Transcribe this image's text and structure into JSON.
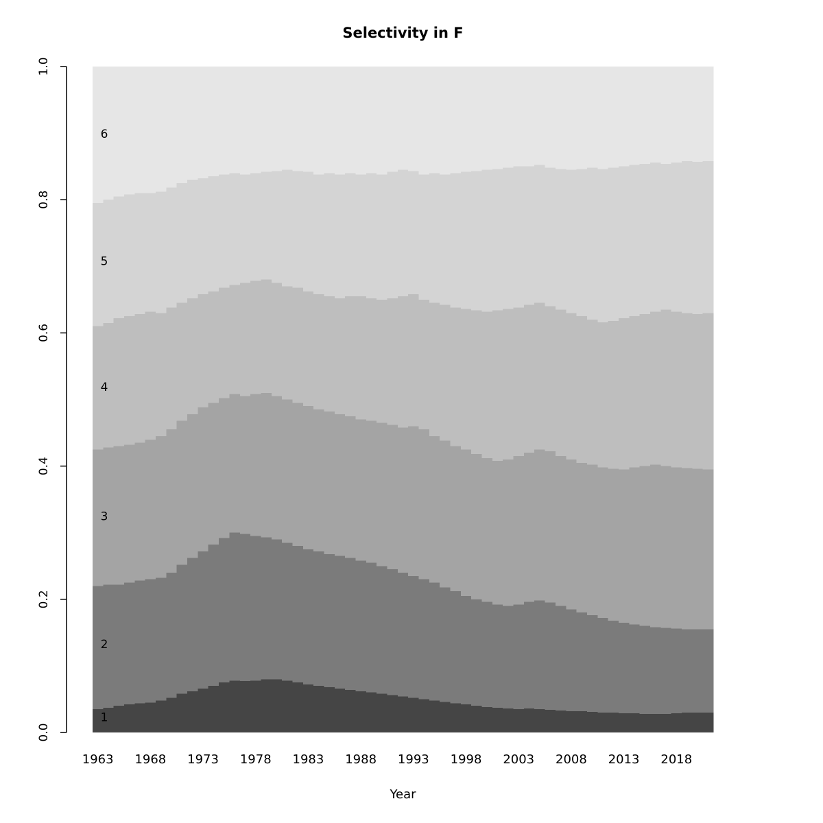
{
  "page": {
    "title": "Selectivity in F"
  },
  "chart_data": {
    "type": "area",
    "stacked": true,
    "normalized": true,
    "title": "Selectivity in F",
    "xlabel": "Year",
    "ylabel": "",
    "ylim": [
      0,
      1
    ],
    "grid": false,
    "legend_position": "none",
    "colors": [
      "#454545",
      "#7b7b7b",
      "#a4a4a4",
      "#bebebe",
      "#d4d4d4",
      "#e6e6e6"
    ],
    "x": [
      1963,
      1964,
      1965,
      1966,
      1967,
      1968,
      1969,
      1970,
      1971,
      1972,
      1973,
      1974,
      1975,
      1976,
      1977,
      1978,
      1979,
      1980,
      1981,
      1982,
      1983,
      1984,
      1985,
      1986,
      1987,
      1988,
      1989,
      1990,
      1991,
      1992,
      1993,
      1994,
      1995,
      1996,
      1997,
      1998,
      1999,
      2000,
      2001,
      2002,
      2003,
      2004,
      2005,
      2006,
      2007,
      2008,
      2009,
      2010,
      2011,
      2012,
      2013,
      2014,
      2015,
      2016,
      2017,
      2018,
      2019,
      2020,
      2021
    ],
    "x_ticks": [
      1963,
      1968,
      1973,
      1978,
      1983,
      1988,
      1993,
      1998,
      2003,
      2008,
      2013,
      2018
    ],
    "y_ticks": [
      0.0,
      0.2,
      0.4,
      0.6,
      0.8,
      1.0
    ],
    "y_tick_labels": [
      "0.0",
      "0.2",
      "0.4",
      "0.6",
      "0.8",
      "1.0"
    ],
    "band_labels": [
      {
        "text": "1",
        "y": 0.022
      },
      {
        "text": "2",
        "y": 0.132
      },
      {
        "text": "3",
        "y": 0.324
      },
      {
        "text": "4",
        "y": 0.518
      },
      {
        "text": "5",
        "y": 0.707
      },
      {
        "text": "6",
        "y": 0.898
      }
    ],
    "series": [
      {
        "name": "1",
        "values": [
          0.035,
          0.037,
          0.04,
          0.042,
          0.044,
          0.045,
          0.048,
          0.052,
          0.058,
          0.062,
          0.066,
          0.07,
          0.075,
          0.078,
          0.077,
          0.078,
          0.08,
          0.08,
          0.078,
          0.075,
          0.072,
          0.07,
          0.068,
          0.066,
          0.064,
          0.062,
          0.06,
          0.058,
          0.056,
          0.054,
          0.052,
          0.05,
          0.048,
          0.046,
          0.044,
          0.042,
          0.04,
          0.038,
          0.037,
          0.036,
          0.035,
          0.036,
          0.035,
          0.034,
          0.033,
          0.032,
          0.032,
          0.031,
          0.03,
          0.03,
          0.029,
          0.029,
          0.028,
          0.028,
          0.028,
          0.029,
          0.03,
          0.03,
          0.03
        ]
      },
      {
        "name": "2",
        "values": [
          0.185,
          0.185,
          0.182,
          0.183,
          0.184,
          0.185,
          0.184,
          0.188,
          0.194,
          0.2,
          0.206,
          0.212,
          0.217,
          0.222,
          0.221,
          0.217,
          0.213,
          0.21,
          0.207,
          0.205,
          0.203,
          0.202,
          0.2,
          0.199,
          0.198,
          0.196,
          0.195,
          0.192,
          0.189,
          0.186,
          0.183,
          0.18,
          0.177,
          0.172,
          0.168,
          0.163,
          0.16,
          0.158,
          0.155,
          0.154,
          0.157,
          0.16,
          0.163,
          0.161,
          0.157,
          0.153,
          0.148,
          0.145,
          0.142,
          0.138,
          0.136,
          0.133,
          0.132,
          0.13,
          0.129,
          0.127,
          0.125,
          0.125,
          0.125
        ]
      },
      {
        "name": "3",
        "values": [
          0.205,
          0.206,
          0.208,
          0.207,
          0.207,
          0.21,
          0.213,
          0.215,
          0.216,
          0.216,
          0.216,
          0.213,
          0.21,
          0.208,
          0.207,
          0.213,
          0.217,
          0.215,
          0.215,
          0.215,
          0.215,
          0.213,
          0.214,
          0.213,
          0.213,
          0.212,
          0.213,
          0.215,
          0.217,
          0.218,
          0.225,
          0.225,
          0.22,
          0.22,
          0.218,
          0.22,
          0.218,
          0.216,
          0.216,
          0.22,
          0.223,
          0.224,
          0.227,
          0.227,
          0.225,
          0.225,
          0.225,
          0.226,
          0.226,
          0.228,
          0.23,
          0.236,
          0.24,
          0.244,
          0.243,
          0.242,
          0.242,
          0.241,
          0.24
        ]
      },
      {
        "name": "4",
        "values": [
          0.185,
          0.187,
          0.192,
          0.193,
          0.193,
          0.192,
          0.185,
          0.183,
          0.177,
          0.174,
          0.17,
          0.167,
          0.166,
          0.164,
          0.17,
          0.17,
          0.17,
          0.17,
          0.17,
          0.173,
          0.172,
          0.173,
          0.173,
          0.174,
          0.18,
          0.185,
          0.184,
          0.185,
          0.19,
          0.197,
          0.198,
          0.195,
          0.2,
          0.204,
          0.208,
          0.211,
          0.216,
          0.22,
          0.226,
          0.226,
          0.223,
          0.222,
          0.22,
          0.218,
          0.22,
          0.22,
          0.22,
          0.218,
          0.218,
          0.222,
          0.227,
          0.227,
          0.228,
          0.23,
          0.235,
          0.234,
          0.233,
          0.232,
          0.235
        ]
      },
      {
        "name": "5",
        "values": [
          0.185,
          0.185,
          0.183,
          0.183,
          0.182,
          0.178,
          0.182,
          0.18,
          0.18,
          0.178,
          0.174,
          0.173,
          0.17,
          0.168,
          0.163,
          0.162,
          0.162,
          0.168,
          0.175,
          0.175,
          0.18,
          0.18,
          0.185,
          0.186,
          0.185,
          0.183,
          0.188,
          0.188,
          0.19,
          0.19,
          0.185,
          0.188,
          0.195,
          0.196,
          0.202,
          0.206,
          0.209,
          0.213,
          0.212,
          0.212,
          0.212,
          0.208,
          0.207,
          0.208,
          0.211,
          0.215,
          0.221,
          0.228,
          0.23,
          0.23,
          0.228,
          0.227,
          0.226,
          0.224,
          0.219,
          0.224,
          0.228,
          0.229,
          0.228
        ]
      },
      {
        "name": "6",
        "values": [
          0.205,
          0.2,
          0.195,
          0.192,
          0.19,
          0.19,
          0.188,
          0.182,
          0.175,
          0.17,
          0.168,
          0.165,
          0.162,
          0.16,
          0.162,
          0.16,
          0.158,
          0.157,
          0.155,
          0.157,
          0.158,
          0.162,
          0.16,
          0.162,
          0.16,
          0.162,
          0.16,
          0.162,
          0.158,
          0.155,
          0.157,
          0.162,
          0.16,
          0.162,
          0.16,
          0.158,
          0.157,
          0.155,
          0.154,
          0.152,
          0.15,
          0.15,
          0.148,
          0.152,
          0.154,
          0.155,
          0.154,
          0.152,
          0.154,
          0.152,
          0.15,
          0.148,
          0.146,
          0.144,
          0.146,
          0.144,
          0.142,
          0.143,
          0.142
        ]
      }
    ]
  }
}
